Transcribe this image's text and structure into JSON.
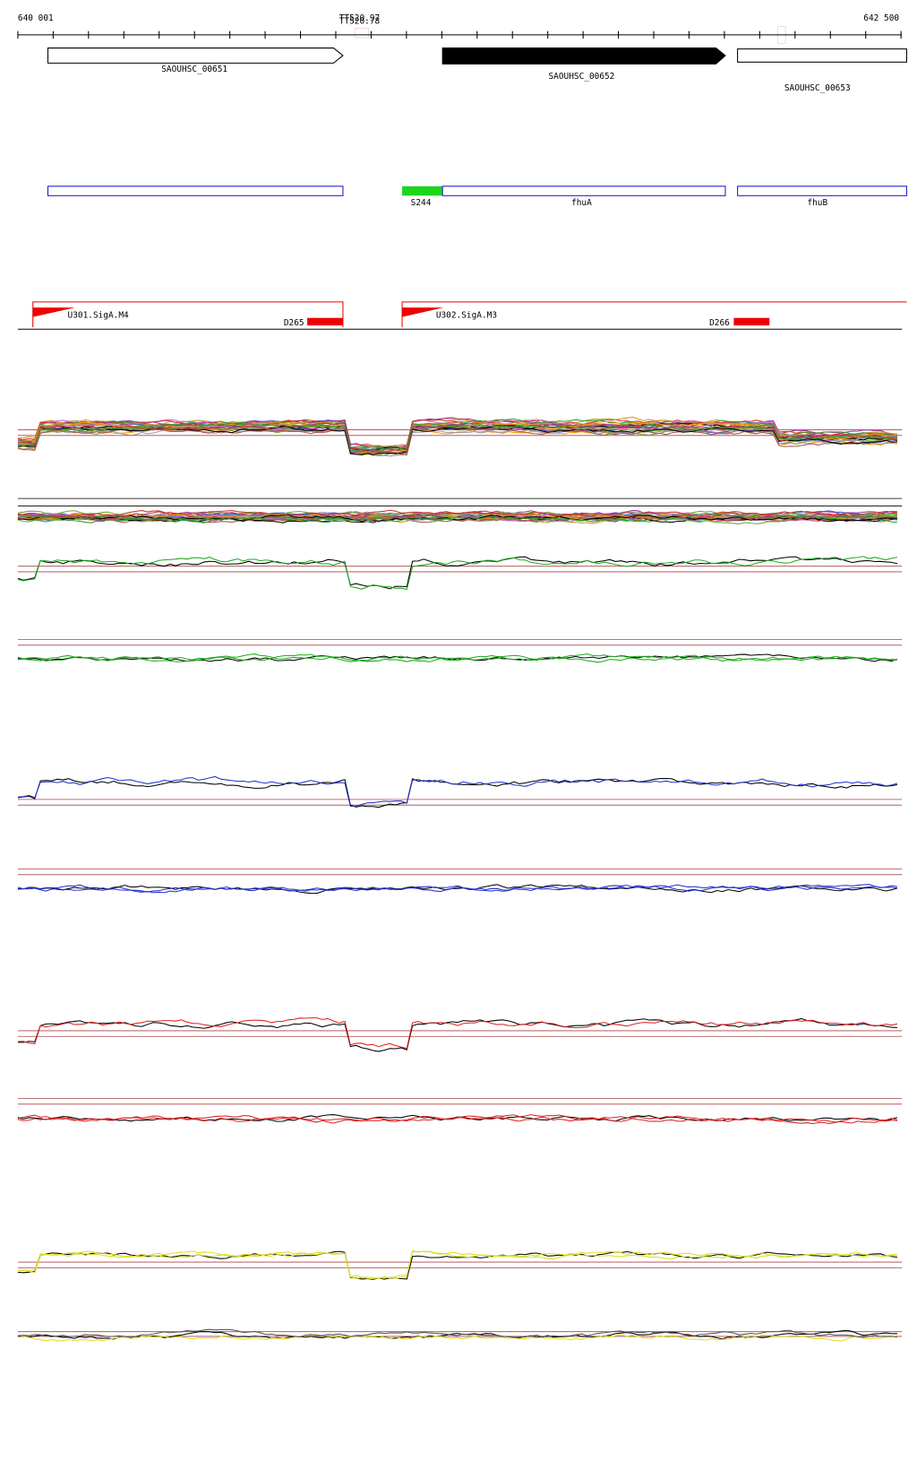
{
  "axis": {
    "start": "640 001",
    "end": "642 500"
  },
  "terminators": [
    "TT520.97",
    "TT520.78"
  ],
  "genes": [
    {
      "label": "SAOUHSC_00651"
    },
    {
      "label": "SAOUHSC_00652"
    },
    {
      "label": "SAOUHSC_00653"
    }
  ],
  "features": [
    {
      "label": "S244"
    },
    {
      "label": "fhuA"
    },
    {
      "label": "fhuB"
    }
  ],
  "promoters": [
    {
      "label": "U301.SigA.M4"
    },
    {
      "label": "D265"
    },
    {
      "label": "U302.SigA.M3"
    },
    {
      "label": "D266"
    }
  ]
}
